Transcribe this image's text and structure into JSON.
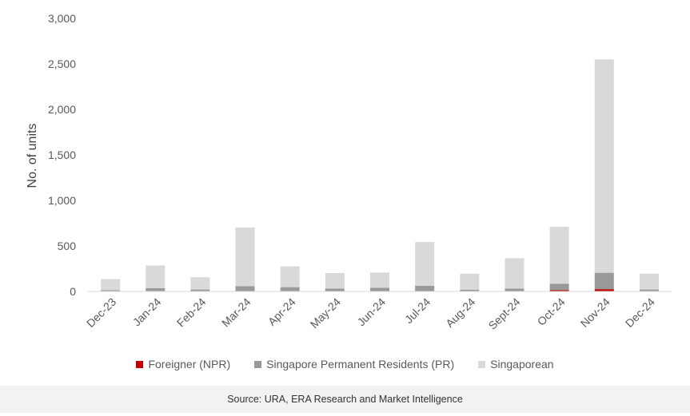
{
  "chart_data": {
    "type": "bar",
    "stacked": true,
    "ylabel": "No. of units",
    "ylim": [
      0,
      3000
    ],
    "yticks": [
      0,
      500,
      1000,
      1500,
      2000,
      2500,
      3000
    ],
    "ytick_labels": [
      "0",
      "500",
      "1,000",
      "1,500",
      "2,000",
      "2,500",
      "3,000"
    ],
    "categories": [
      "Dec-23",
      "Jan-24",
      "Feb-24",
      "Mar-24",
      "Apr-24",
      "May-24",
      "Jun-24",
      "Jul-24",
      "Aug-24",
      "Sept-24",
      "Oct-24",
      "Nov-24",
      "Dec-24"
    ],
    "series": [
      {
        "name": "Foreigner (NPR)",
        "color": "#c00000",
        "values": [
          1,
          2,
          1,
          3,
          2,
          2,
          2,
          3,
          1,
          2,
          15,
          25,
          1
        ]
      },
      {
        "name": "Singapore Permanent Residents (PR)",
        "color": "#999999",
        "values": [
          14,
          33,
          20,
          55,
          45,
          30,
          38,
          60,
          19,
          30,
          70,
          180,
          20
        ]
      },
      {
        "name": "Singaporean",
        "color": "#d9d9d9",
        "values": [
          120,
          250,
          135,
          645,
          228,
          170,
          168,
          480,
          175,
          333,
          625,
          2345,
          174
        ]
      }
    ],
    "grid": false,
    "legend_position": "bottom"
  },
  "source": "Source: URA, ERA Research and Market Intelligence"
}
